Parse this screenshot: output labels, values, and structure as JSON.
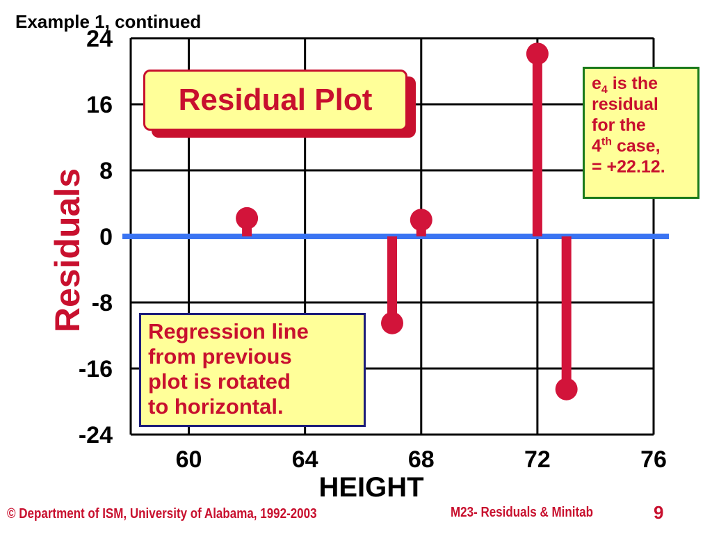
{
  "slide": {
    "title": "Example 1, continued",
    "footer_left": "© Department of ISM, University of Alabama, 1992-2003",
    "footer_right": "M23-  Residuals &  Minitab",
    "page_number": "9"
  },
  "callouts": {
    "plot_title": "Residual Plot",
    "note": {
      "e": "e",
      "sub": "4",
      "line1_rest": " is the",
      "line2": "residual",
      "line3": "for the",
      "line4_num": "4",
      "line4_sup": "th",
      "line4_rest": " case,",
      "line5": "= +22.12."
    },
    "regression": [
      "Regression line",
      "from previous",
      "plot is rotated",
      "to horizontal."
    ]
  },
  "colors": {
    "residual": "#d2143a",
    "zero_line": "#3a74f2",
    "grid": "#000000",
    "ylabel": "#c8102e"
  },
  "chart_data": {
    "type": "scatter",
    "title": "Residual Plot",
    "xlabel": "HEIGHT",
    "ylabel": "Residuals",
    "xlim": [
      58,
      76
    ],
    "ylim": [
      -24,
      24
    ],
    "xticks": [
      60,
      64,
      68,
      72,
      76
    ],
    "yticks": [
      24,
      16,
      8,
      0,
      -8,
      -16,
      -24
    ],
    "grid": true,
    "series": [
      {
        "x": [
          62,
          67,
          68,
          72,
          73
        ],
        "y": [
          2.2,
          -10.5,
          2.0,
          22.12,
          -18.5
        ]
      }
    ]
  }
}
